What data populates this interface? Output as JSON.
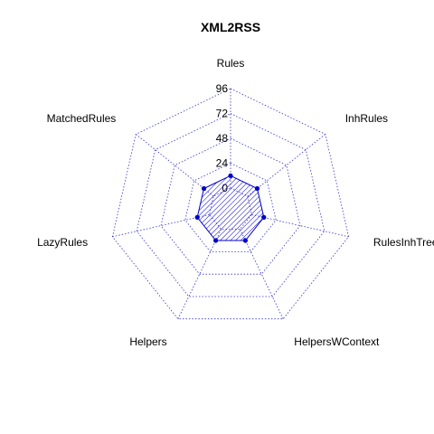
{
  "chart_data": {
    "type": "radar",
    "title": "XML2RSS",
    "axes": [
      "Rules",
      "InhRules",
      "RulesInhTrees",
      "HelpersWContext",
      "Helpers",
      "LazyRules",
      "MatchedRules"
    ],
    "ticks": [
      "0",
      "24",
      "48",
      "72",
      "96"
    ],
    "range": [
      0,
      96
    ],
    "series": [
      {
        "values": [
          12,
          12,
          12,
          12,
          12,
          12,
          12
        ]
      }
    ],
    "colors": {
      "grid": "#3333cc",
      "fill": "#0000cc",
      "stroke": "#0000cc",
      "point": "#0000cc"
    }
  }
}
